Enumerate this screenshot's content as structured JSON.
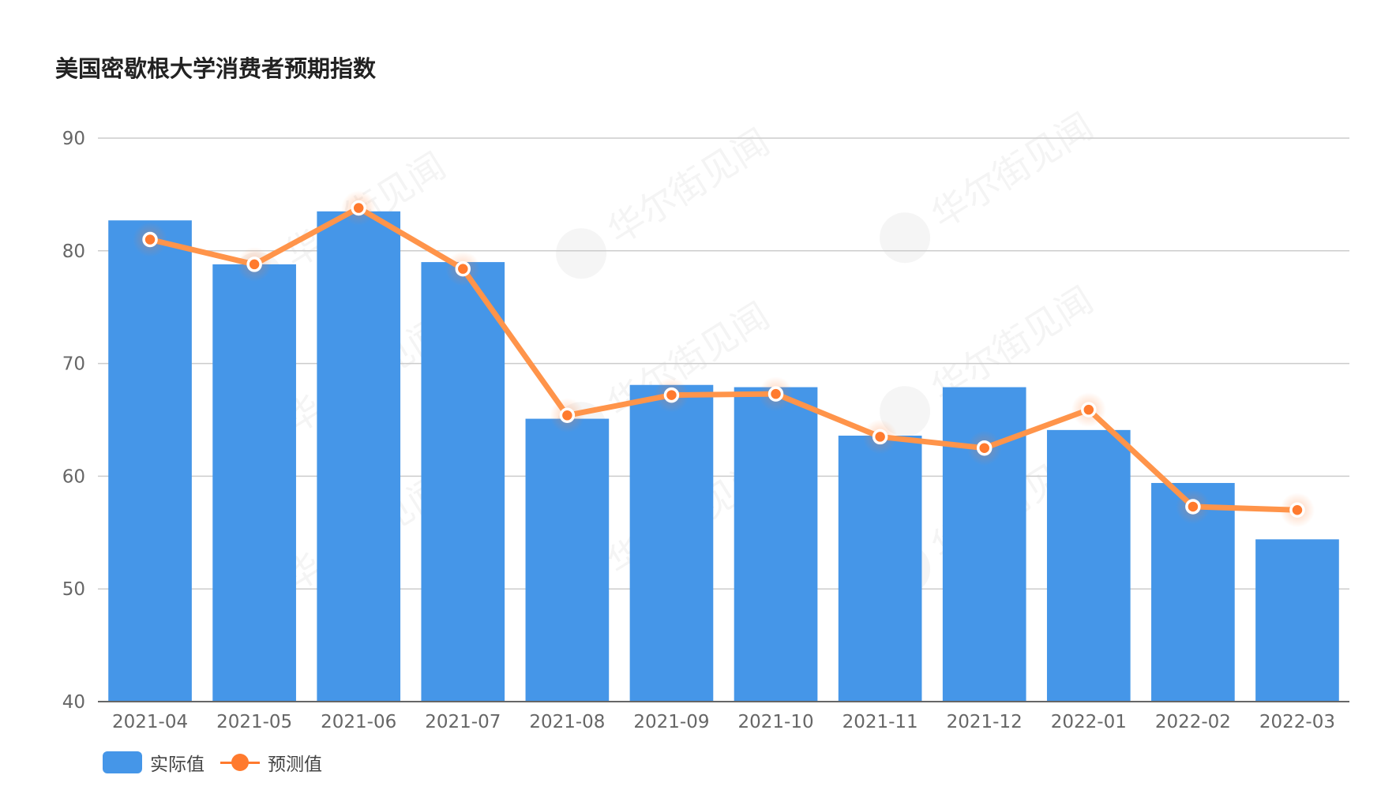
{
  "title": "美国密歇根大学消费者预期指数",
  "legend": {
    "actual_label": "实际值",
    "forecast_label": "预测值"
  },
  "watermark": "华尔街见闻",
  "colors": {
    "bar": "#4596E8",
    "line": "#FF944A",
    "point": "#FF7A2E",
    "grid": "#CCCCCC",
    "axis": "#666666"
  },
  "chart_data": {
    "type": "bar",
    "title": "美国密歇根大学消费者预期指数",
    "xlabel": "",
    "ylabel": "",
    "ylim": [
      40,
      90
    ],
    "yticks": [
      40,
      50,
      60,
      70,
      80,
      90
    ],
    "grid": true,
    "legend_position": "bottom-left",
    "categories": [
      "2021-04",
      "2021-05",
      "2021-06",
      "2021-07",
      "2021-08",
      "2021-09",
      "2021-10",
      "2021-11",
      "2021-12",
      "2022-01",
      "2022-02",
      "2022-03"
    ],
    "series": [
      {
        "name": "实际值",
        "type": "bar",
        "values": [
          82.7,
          78.8,
          83.5,
          79.0,
          65.1,
          68.1,
          67.9,
          63.6,
          67.9,
          64.1,
          59.4,
          54.4
        ]
      },
      {
        "name": "预测值",
        "type": "line",
        "values": [
          81.0,
          78.8,
          83.8,
          78.4,
          65.4,
          67.2,
          67.3,
          63.5,
          62.5,
          65.9,
          57.3,
          57.0
        ]
      }
    ]
  }
}
